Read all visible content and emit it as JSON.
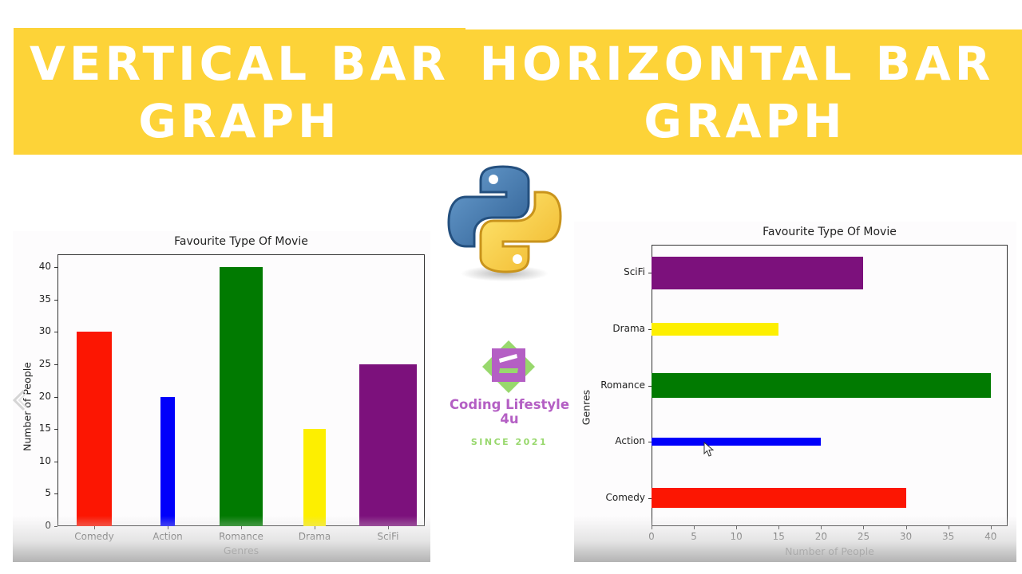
{
  "banners": {
    "left": {
      "line1": "VERTICAL BAR",
      "line2": "GRAPH"
    },
    "right": {
      "line1": "HORIZONTAL BAR",
      "line2": "GRAPH"
    },
    "color": "#fdd338",
    "text_color": "#ffffff"
  },
  "brand": {
    "name_line1": "Coding Lifestyle",
    "name_line2": "4u",
    "since": "SINCE 2021",
    "primary_color": "#b45fc4",
    "accent_color": "#98d86d"
  },
  "icons": {
    "python_logo": "python-logo-icon",
    "brand_logo": "coding-lifestyle-logo-icon",
    "left_nav": "chevron-left-icon",
    "cursor": "mouse-pointer-icon"
  },
  "chart_data": [
    {
      "type": "bar",
      "orientation": "vertical",
      "title": "Favourite Type Of Movie",
      "xlabel": "Genres",
      "ylabel": "Number of People",
      "categories": [
        "Comedy",
        "Action",
        "Romance",
        "Drama",
        "SciFi"
      ],
      "values": [
        30,
        20,
        40,
        15,
        25
      ],
      "colors": [
        "#fc1602",
        "#0000fb",
        "#017a01",
        "#fdef00",
        "#7c117c"
      ],
      "bar_widths": [
        0.6,
        0.25,
        0.75,
        0.4,
        1.0
      ],
      "yticks": [
        0,
        5,
        10,
        15,
        20,
        25,
        30,
        35,
        40
      ],
      "ylim": [
        0,
        42
      ],
      "grid": false,
      "legend": null
    },
    {
      "type": "bar",
      "orientation": "horizontal",
      "title": "Favourite Type Of Movie",
      "xlabel": "Number of People",
      "ylabel": "Genres",
      "categories": [
        "Comedy",
        "Action",
        "Romance",
        "Drama",
        "SciFi"
      ],
      "values": [
        30,
        20,
        40,
        15,
        25
      ],
      "colors": [
        "#fc1602",
        "#0000fb",
        "#017a01",
        "#fdef00",
        "#7c117c"
      ],
      "bar_heights": [
        0.6,
        0.25,
        0.75,
        0.4,
        1.0
      ],
      "xticks": [
        0,
        5,
        10,
        15,
        20,
        25,
        30,
        35,
        40
      ],
      "xlim": [
        0,
        42
      ],
      "grid": false,
      "legend": null
    }
  ]
}
